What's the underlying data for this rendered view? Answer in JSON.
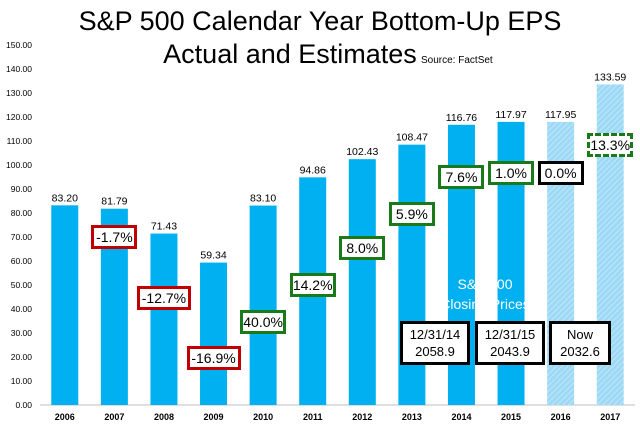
{
  "title_line1": "S&P 500 Calendar Year Bottom-Up EPS",
  "title_line2": "Actual and Estimates",
  "source": "Source: FactSet",
  "colors": {
    "actual": "#00b0f0",
    "estimate": "#9dd9f5",
    "red": "#c00000",
    "green": "#1a7a1a"
  },
  "chart_data": {
    "type": "bar",
    "title": "S&P 500 Calendar Year Bottom-Up EPS Actual and Estimates",
    "categories": [
      "2006",
      "2007",
      "2008",
      "2009",
      "2010",
      "2011",
      "2012",
      "2013",
      "2014",
      "2015",
      "2016",
      "2017"
    ],
    "values": [
      83.2,
      81.79,
      71.43,
      59.34,
      83.1,
      94.86,
      102.43,
      108.47,
      116.76,
      117.97,
      117.95,
      133.59
    ],
    "value_labels": [
      "83.20",
      "81.79",
      "71.43",
      "59.34",
      "83.10",
      "94.86",
      "102.43",
      "108.47",
      "116.76",
      "117.97",
      "117.95",
      "133.59"
    ],
    "estimate_categories": [
      "2016",
      "2017"
    ],
    "ylim": [
      0,
      150
    ],
    "yticks": [
      "0.00",
      "10.00",
      "20.00",
      "30.00",
      "40.00",
      "50.00",
      "60.00",
      "70.00",
      "80.00",
      "90.00",
      "100.00",
      "110.00",
      "120.00",
      "130.00",
      "140.00",
      "150.00"
    ],
    "growth": [
      {
        "year": "2007",
        "label": "-1.7%",
        "color": "red"
      },
      {
        "year": "2008",
        "label": "-12.7%",
        "color": "red"
      },
      {
        "year": "2009",
        "label": "-16.9%",
        "color": "red"
      },
      {
        "year": "2010",
        "label": "40.0%",
        "color": "green"
      },
      {
        "year": "2011",
        "label": "14.2%",
        "color": "green"
      },
      {
        "year": "2012",
        "label": "8.0%",
        "color": "green"
      },
      {
        "year": "2013",
        "label": "5.9%",
        "color": "green"
      },
      {
        "year": "2014",
        "label": "7.6%",
        "color": "green"
      },
      {
        "year": "2015",
        "label": "1.0%",
        "color": "green"
      },
      {
        "year": "2016",
        "label": "0.0%",
        "color": "black"
      },
      {
        "year": "2017",
        "label": "13.3%",
        "color": "green-dashed"
      }
    ],
    "grid": false,
    "legend": "none"
  },
  "closing": {
    "label_line1": "S&P 500",
    "label_line2": "Closing Prices",
    "items": [
      {
        "date": "12/31/14",
        "price": "2058.9"
      },
      {
        "date": "12/31/15",
        "price": "2043.9"
      },
      {
        "date": "Now",
        "price": "2032.6"
      }
    ]
  }
}
